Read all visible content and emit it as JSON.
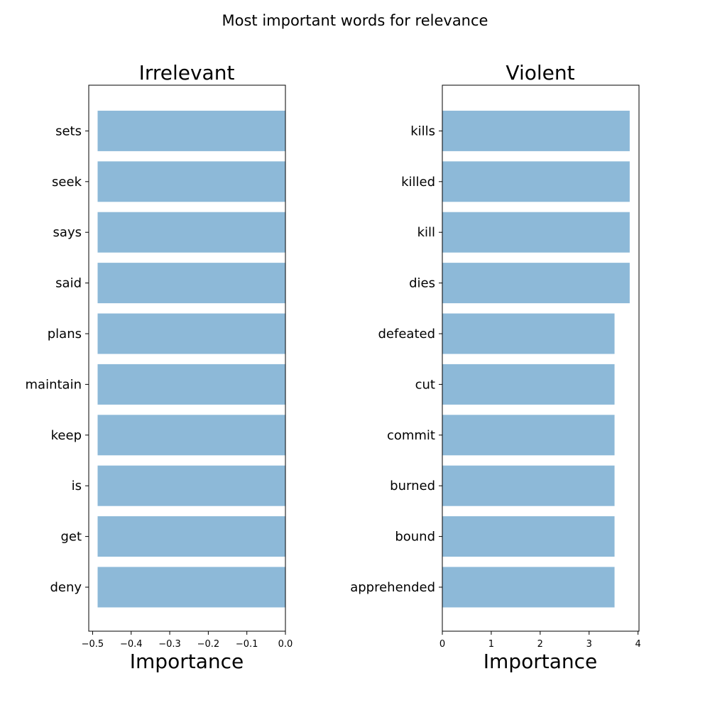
{
  "figure_title": "Most important words for relevance",
  "chart_data": [
    {
      "type": "bar",
      "orientation": "horizontal",
      "title": "Irrelevant",
      "xlabel": "Importance",
      "ylabel": "",
      "categories": [
        "deny",
        "get",
        "is",
        "keep",
        "maintain",
        "plans",
        "said",
        "says",
        "seek",
        "sets"
      ],
      "values": [
        -0.487,
        -0.487,
        -0.487,
        -0.487,
        -0.487,
        -0.487,
        -0.487,
        -0.487,
        -0.487,
        -0.487
      ],
      "xlim": [
        -0.51,
        0.0
      ],
      "xticks": [
        -0.5,
        -0.4,
        -0.3,
        -0.2,
        -0.1,
        0.0
      ],
      "xtick_labels": [
        "−0.5",
        "−0.4",
        "−0.3",
        "−0.2",
        "−0.1",
        "0.0"
      ],
      "bar_color": "#8DB9D8",
      "grid": false
    },
    {
      "type": "bar",
      "orientation": "horizontal",
      "title": "Violent",
      "xlabel": "Importance",
      "ylabel": "",
      "categories": [
        "apprehended",
        "bound",
        "burned",
        "commit",
        "cut",
        "defeated",
        "dies",
        "kill",
        "killed",
        "kills"
      ],
      "values": [
        3.52,
        3.52,
        3.52,
        3.52,
        3.52,
        3.52,
        3.83,
        3.83,
        3.83,
        3.83
      ],
      "xlim": [
        0,
        4.02
      ],
      "xticks": [
        0,
        1,
        2,
        3,
        4
      ],
      "xtick_labels": [
        "0",
        "1",
        "2",
        "3",
        "4"
      ],
      "bar_color": "#8DB9D8",
      "grid": false
    }
  ]
}
